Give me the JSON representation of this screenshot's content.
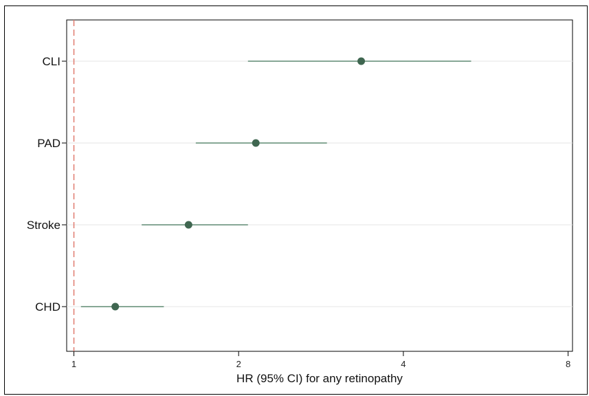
{
  "chart_data": {
    "type": "forest",
    "xlabel": "HR (95% CI) for any retinopathy",
    "xscale": "log2",
    "xlim": [
      0.97,
      8.15
    ],
    "xticks": [
      1,
      2,
      4,
      8
    ],
    "xtick_labels": [
      "1",
      "2",
      "4",
      "8"
    ],
    "reference_line": 1,
    "categories": [
      "CLI",
      "PAD",
      "Stroke",
      "CHD"
    ],
    "estimates": [
      {
        "label": "CLI",
        "hr": 3.35,
        "lower": 2.08,
        "upper": 5.32
      },
      {
        "label": "PAD",
        "hr": 2.15,
        "lower": 1.67,
        "upper": 2.9
      },
      {
        "label": "Stroke",
        "hr": 1.62,
        "lower": 1.33,
        "upper": 2.08
      },
      {
        "label": "CHD",
        "hr": 1.19,
        "lower": 1.03,
        "upper": 1.46
      }
    ],
    "grid": true,
    "colors": {
      "marker": "#3f6650",
      "ci_line": "#5f8a72",
      "reference": "#e07a6e",
      "grid": "#e6e6e6"
    }
  }
}
